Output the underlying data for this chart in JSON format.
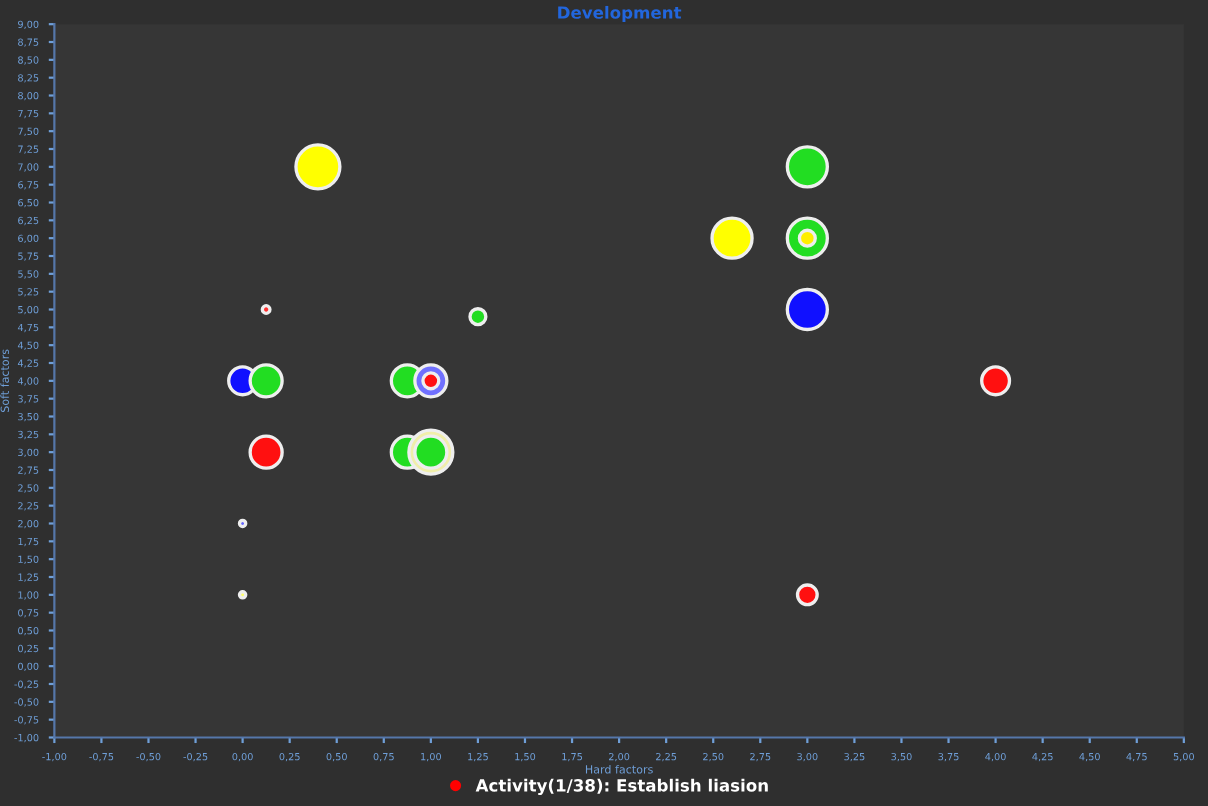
{
  "chart_data": {
    "type": "bubble",
    "title": "Development",
    "xlabel": "Hard factors",
    "ylabel": "Soft factors",
    "series": [
      {
        "name": "Activity(1/38): Establish liasion",
        "color": "#ff0000",
        "x": [
          0.4,
          0.125,
          1.25,
          0.0,
          0.125,
          0.875,
          1.0,
          1.0,
          0.125,
          0.875,
          1.0,
          1.0,
          0.0,
          0.0,
          3.0,
          2.6,
          3.0,
          3.0,
          3.0,
          4.0,
          3.0
        ],
        "values": [
          7.0,
          5.0,
          4.9,
          4.0,
          4.0,
          4.0,
          4.0,
          4.0,
          3.0,
          3.0,
          3.0,
          3.0,
          2.0,
          1.0,
          7.0,
          6.0,
          6.0,
          6.0,
          5.0,
          4.0,
          1.0
        ],
        "sizes": [
          1,
          0.03,
          0.13,
          0.4,
          0.53,
          0.53,
          0.53,
          0.13,
          0.53,
          0.53,
          1,
          0.53,
          0.02,
          0.02,
          0.83,
          0.83,
          0.83,
          0.13,
          0.83,
          0.4,
          0.2
        ],
        "colors": [
          "#ffff00",
          "#ff3030",
          "#22dd22",
          "#1010ff",
          "#22dd22",
          "#22dd22",
          "#7070ff",
          "#ff1010",
          "#ff1010",
          "#22dd22",
          "#f0eeaa",
          "#22dd22",
          "#6666ff",
          "#ffff66",
          "#22dd22",
          "#ffff00",
          "#22dd22",
          "#ffee00",
          "#1010ff",
          "#ff1010",
          "#ff1010"
        ]
      }
    ],
    "xlim": [
      -1,
      5
    ],
    "ylim": [
      -1,
      9
    ],
    "xticks": [
      {
        "value": -1,
        "label": "-1,00"
      },
      {
        "value": -0.75,
        "label": "-0,75"
      },
      {
        "value": -0.5,
        "label": "-0,50"
      },
      {
        "value": -0.25,
        "label": "-0,25"
      },
      {
        "value": 0,
        "label": "0,00"
      },
      {
        "value": 0.25,
        "label": "0,25"
      },
      {
        "value": 0.5,
        "label": "0,50"
      },
      {
        "value": 0.75,
        "label": "0,75"
      },
      {
        "value": 1,
        "label": "1,00"
      },
      {
        "value": 1.25,
        "label": "1,25"
      },
      {
        "value": 1.5,
        "label": "1,50"
      },
      {
        "value": 1.75,
        "label": "1,75"
      },
      {
        "value": 2,
        "label": "2,00"
      },
      {
        "value": 2.25,
        "label": "2,25"
      },
      {
        "value": 2.5,
        "label": "2,50"
      },
      {
        "value": 2.75,
        "label": "2,75"
      },
      {
        "value": 3,
        "label": "3,00"
      },
      {
        "value": 3.25,
        "label": "3,25"
      },
      {
        "value": 3.5,
        "label": "3,50"
      },
      {
        "value": 3.75,
        "label": "3,75"
      },
      {
        "value": 4,
        "label": "4,00"
      },
      {
        "value": 4.25,
        "label": "4,25"
      },
      {
        "value": 4.5,
        "label": "4,50"
      },
      {
        "value": 4.75,
        "label": "4,75"
      },
      {
        "value": 5,
        "label": "5,00"
      }
    ],
    "yticks": [
      {
        "value": -1,
        "label": "-1,00"
      },
      {
        "value": -0.75,
        "label": "-0,75"
      },
      {
        "value": -0.5,
        "label": "-0,50"
      },
      {
        "value": -0.25,
        "label": "-0,25"
      },
      {
        "value": 0,
        "label": "0,00"
      },
      {
        "value": 0.25,
        "label": "0,25"
      },
      {
        "value": 0.5,
        "label": "0,50"
      },
      {
        "value": 0.75,
        "label": "0,75"
      },
      {
        "value": 1,
        "label": "1,00"
      },
      {
        "value": 1.25,
        "label": "1,25"
      },
      {
        "value": 1.5,
        "label": "1,50"
      },
      {
        "value": 1.75,
        "label": "1,75"
      },
      {
        "value": 2,
        "label": "2,00"
      },
      {
        "value": 2.25,
        "label": "2,25"
      },
      {
        "value": 2.5,
        "label": "2,50"
      },
      {
        "value": 2.75,
        "label": "2,75"
      },
      {
        "value": 3,
        "label": "3,00"
      },
      {
        "value": 3.25,
        "label": "3,25"
      },
      {
        "value": 3.5,
        "label": "3,50"
      },
      {
        "value": 3.75,
        "label": "3,75"
      },
      {
        "value": 4,
        "label": "4,00"
      },
      {
        "value": 4.25,
        "label": "4,25"
      },
      {
        "value": 4.5,
        "label": "4,50"
      },
      {
        "value": 4.75,
        "label": "4,75"
      },
      {
        "value": 5,
        "label": "5,00"
      },
      {
        "value": 5.25,
        "label": "5,25"
      },
      {
        "value": 5.5,
        "label": "5,50"
      },
      {
        "value": 5.75,
        "label": "5,75"
      },
      {
        "value": 6,
        "label": "6,00"
      },
      {
        "value": 6.25,
        "label": "6,25"
      },
      {
        "value": 6.5,
        "label": "6,50"
      },
      {
        "value": 6.75,
        "label": "6,75"
      },
      {
        "value": 7,
        "label": "7,00"
      },
      {
        "value": 7.25,
        "label": "7,25"
      },
      {
        "value": 7.5,
        "label": "7,50"
      },
      {
        "value": 7.75,
        "label": "7,75"
      },
      {
        "value": 8,
        "label": "8,00"
      },
      {
        "value": 8.25,
        "label": "8,25"
      },
      {
        "value": 8.5,
        "label": "8,50"
      },
      {
        "value": 8.75,
        "label": "8,75"
      },
      {
        "value": 9,
        "label": "9,00"
      }
    ],
    "grid": false,
    "legend": "bottom"
  }
}
